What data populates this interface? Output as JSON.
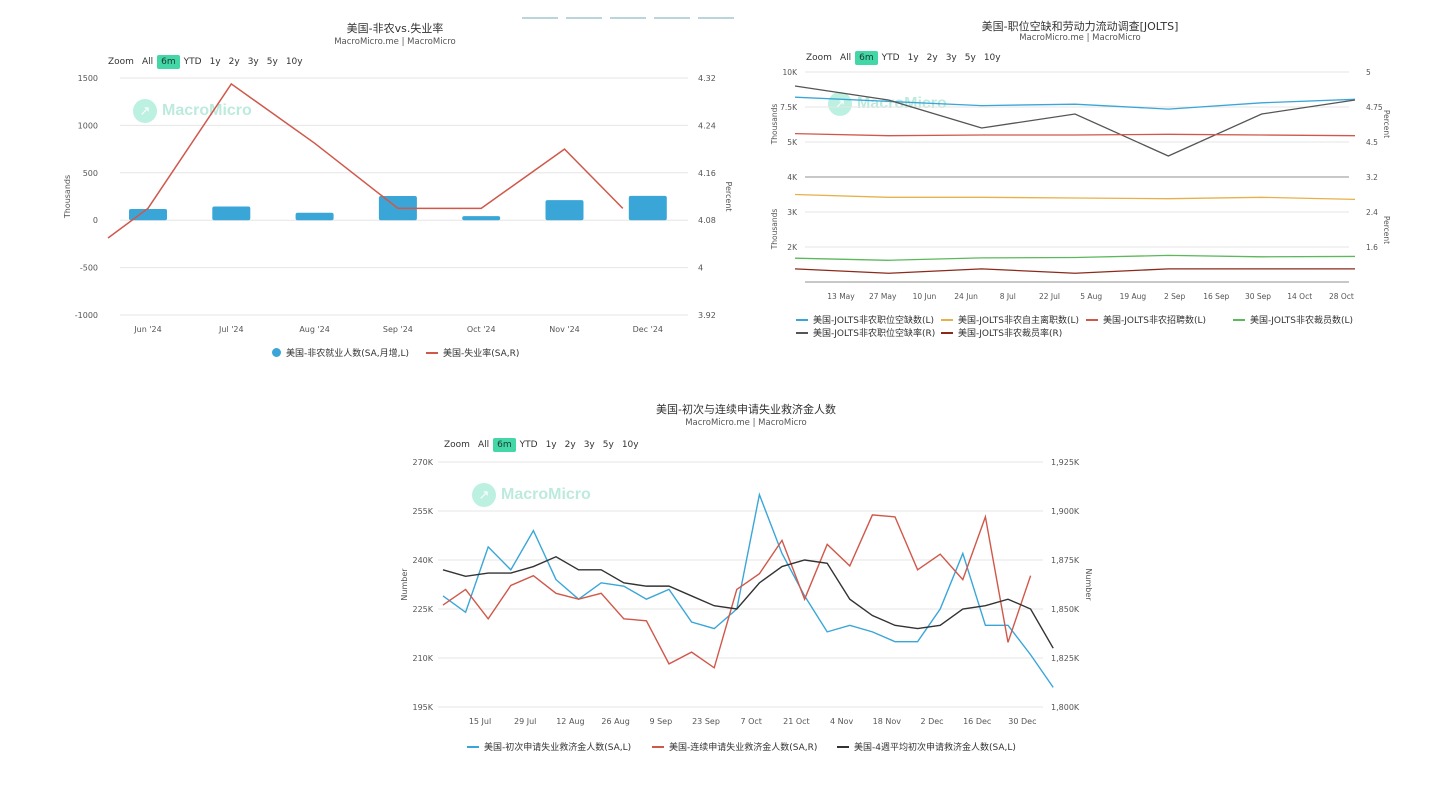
{
  "top_tabs": [
    "",
    "",
    "",
    "",
    ""
  ],
  "watermark": "MacroMicro",
  "zoom_label": "Zoom",
  "zoom_options": [
    "All",
    "6m",
    "YTD",
    "1y",
    "2y",
    "3y",
    "5y",
    "10y"
  ],
  "zoom_active": "6m",
  "chart_data": [
    {
      "type": "bar",
      "title": "美国-非农vs.失业率",
      "subtitle": "MacroMicro.me | MacroMicro",
      "ylabel": "Thousands",
      "y2label": "Percent",
      "ylim": [
        -1000,
        1500
      ],
      "y2lim": [
        3.92,
        4.32
      ],
      "yticks": [
        "1500",
        "1000",
        "500",
        "0",
        "-500",
        "-1000"
      ],
      "y2ticks": [
        "4.32",
        "4.24",
        "4.16",
        "4.08",
        "4",
        "3.92"
      ],
      "categories": [
        "Jun '24",
        "Jul '24",
        "Aug '24",
        "Sep '24",
        "Oct '24",
        "Nov '24",
        "Dec '24"
      ],
      "legend_position": "bottom",
      "series": [
        {
          "name": "美国-非农就业人数(SA,月增,L)",
          "kind": "bar",
          "axis": "left",
          "color": "#3aa6d8",
          "values": [
            118,
            144,
            78,
            255,
            43,
            212,
            256
          ]
        },
        {
          "name": "美国-失业率(SA,R)",
          "kind": "line",
          "axis": "right",
          "color": "#d0584a",
          "x": [
            -0.48,
            0,
            1,
            2,
            3,
            4,
            5,
            5.7
          ],
          "values": [
            4.05,
            4.1,
            4.31,
            4.21,
            4.1,
            4.1,
            4.2,
            4.1
          ]
        }
      ]
    },
    {
      "type": "line",
      "title": "美国-职位空缺和劳动力流动调查[JOLTS]",
      "subtitle": "MacroMicro.me | MacroMicro",
      "ylabel": "Thousands",
      "y2label": "Percent",
      "x_ticks": [
        "13 May",
        "27 May",
        "10 Jun",
        "24 Jun",
        "8 Jul",
        "22 Jul",
        "5 Aug",
        "19 Aug",
        "2 Sep",
        "16 Sep",
        "30 Sep",
        "14 Oct",
        "28 Oct"
      ],
      "upper": {
        "yticks": [
          "10K",
          "7.5K",
          "5K",
          "4K"
        ],
        "y2ticks": [
          "5",
          "4.75",
          "4.5",
          "3.2"
        ],
        "series": [
          {
            "name": "美国-JOLTS非农职位空缺数(L)",
            "color": "#3aa6d8",
            "values": [
              8200,
              7900,
              7600,
              7700,
              7350,
              7800,
              8050
            ]
          },
          {
            "name": "美国-JOLTS非农职位空缺率(R)",
            "color": "#555555",
            "values": [
              4.9,
              4.8,
              4.6,
              4.7,
              4.4,
              4.7,
              4.8
            ]
          },
          {
            "name": "美国-JOLTS非农招聘数(L)",
            "color": "#d0584a",
            "values": [
              5600,
              5450,
              5500,
              5500,
              5550,
              5500,
              5450
            ]
          },
          {
            "name": "美国-JOLTS非农自主离职数(L)",
            "color": "#e8b04a",
            "values": [
              3500,
              3420,
              3420,
              3400,
              3380,
              3420,
              3360
            ]
          }
        ]
      },
      "lower": {
        "yticks": [
          "3K",
          "2K"
        ],
        "y2ticks": [
          "2.4",
          "1.6"
        ],
        "series": [
          {
            "name": "美国-JOLTS非农裁员数(L)",
            "color": "#5cb85c",
            "values": [
              1680,
              1620,
              1690,
              1700,
              1760,
              1720,
              1730
            ]
          },
          {
            "name": "美国-JOLTS非农裁员率(R)",
            "color": "#8b2a1a",
            "values": [
              1.1,
              1.0,
              1.1,
              1.0,
              1.1,
              1.1,
              1.1
            ]
          }
        ]
      },
      "legend": [
        {
          "name": "美国-JOLTS非农职位空缺数(L)",
          "color": "#3aa6d8"
        },
        {
          "name": "美国-JOLTS非农自主离职数(L)",
          "color": "#e8b04a"
        },
        {
          "name": "美国-JOLTS非农招聘数(L)",
          "color": "#d0584a"
        },
        {
          "name": "美国-JOLTS非农裁员数(L)",
          "color": "#5cb85c"
        },
        {
          "name": "美国-JOLTS非农职位空缺率(R)",
          "color": "#555555"
        },
        {
          "name": "美国-JOLTS非农裁员率(R)",
          "color": "#8b2a1a"
        }
      ],
      "legend_position": "bottom"
    },
    {
      "type": "line",
      "title": "美国-初次与连续申请失业救济金人数",
      "subtitle": "MacroMicro.me | MacroMicro",
      "ylabel": "Number",
      "y2label": "Number",
      "ylim": [
        195000,
        270000
      ],
      "y2lim": [
        1800000,
        1925000
      ],
      "yticks": [
        "270K",
        "255K",
        "240K",
        "225K",
        "210K",
        "195K"
      ],
      "y2ticks": [
        "1,925K",
        "1,900K",
        "1,875K",
        "1,850K",
        "1,825K",
        "1,800K"
      ],
      "x_ticks": [
        "15 Jul",
        "29 Jul",
        "12 Aug",
        "26 Aug",
        "9 Sep",
        "23 Sep",
        "7 Oct",
        "21 Oct",
        "4 Nov",
        "18 Nov",
        "2 Dec",
        "16 Dec",
        "30 Dec"
      ],
      "legend_position": "bottom",
      "series": [
        {
          "name": "美国-初次申请失业救济金人数(SA,L)",
          "color": "#3aa6d8",
          "axis": "left",
          "values": [
            229000,
            224000,
            244000,
            237000,
            249000,
            234000,
            228000,
            233000,
            232000,
            228000,
            231000,
            221000,
            219000,
            225000,
            260000,
            242000,
            229000,
            218000,
            220000,
            218000,
            215000,
            215000,
            225000,
            242000,
            220000,
            220000,
            211000,
            201000
          ]
        },
        {
          "name": "美国-连续申请失业救济金人数(SA,R)",
          "color": "#d0584a",
          "axis": "right",
          "values": [
            1852000,
            1860000,
            1845000,
            1862000,
            1867000,
            1858000,
            1855000,
            1858000,
            1845000,
            1844000,
            1822000,
            1828000,
            1820000,
            1860000,
            1868000,
            1885000,
            1855000,
            1883000,
            1872000,
            1898000,
            1897000,
            1870000,
            1878000,
            1865000,
            1897000,
            1833000,
            1867000
          ]
        },
        {
          "name": "美国-4週平均初次申请救济金人数(SA,L)",
          "color": "#333333",
          "axis": "left",
          "values": [
            237000,
            235000,
            236000,
            236000,
            238000,
            241000,
            237000,
            237000,
            233000,
            232000,
            232000,
            229000,
            226000,
            225000,
            233000,
            238000,
            240000,
            239000,
            228000,
            223000,
            220000,
            219000,
            220000,
            225000,
            226000,
            228000,
            225000,
            213000
          ]
        }
      ]
    }
  ]
}
